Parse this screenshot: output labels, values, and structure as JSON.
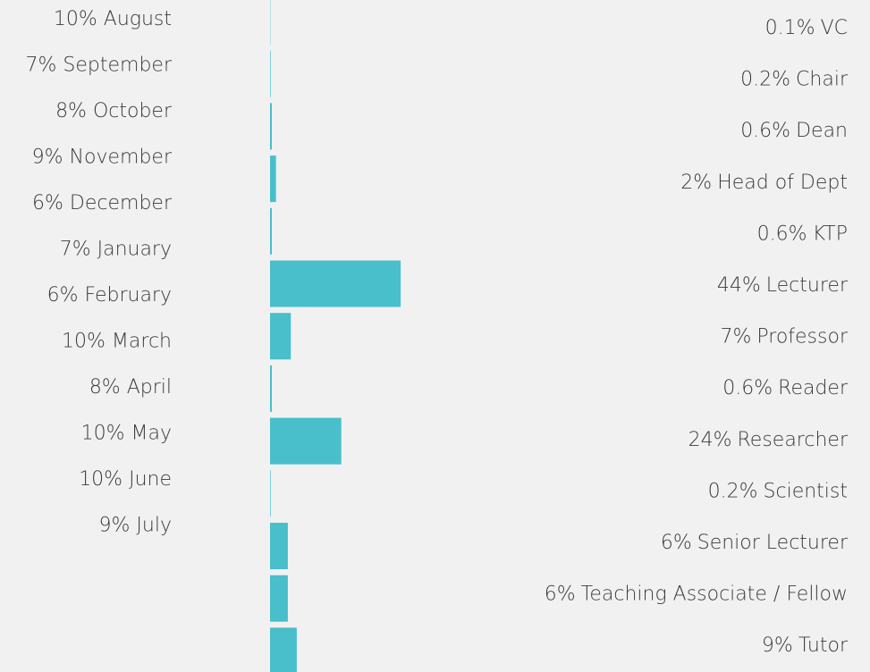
{
  "months": [
    "10% August",
    "7% September",
    "8% October",
    "9% November",
    "6% December",
    "7% January",
    "6% February",
    "10% March",
    "8% April",
    "10% May",
    "10% June",
    "9% July"
  ],
  "chart_data": {
    "type": "bar",
    "orientation": "horizontal",
    "color": "#48bfcb",
    "categories": [
      "VC",
      "Chair",
      "Dean",
      "Head of Dept",
      "KTP",
      "Lecturer",
      "Professor",
      "Reader",
      "Researcher",
      "Scientist",
      "Senior Lecturer",
      "Teaching Associate / Fellow",
      "Tutor"
    ],
    "values": [
      0.1,
      0.2,
      0.6,
      2,
      0.6,
      44,
      7,
      0.6,
      24,
      0.2,
      6,
      6,
      9
    ],
    "value_labels": [
      "0.1%",
      "0.2%",
      "0.6%",
      "2%",
      "0.6%",
      "44%",
      "7%",
      "0.6%",
      "24%",
      "0.2%",
      "6%",
      "6%",
      "9%"
    ]
  }
}
